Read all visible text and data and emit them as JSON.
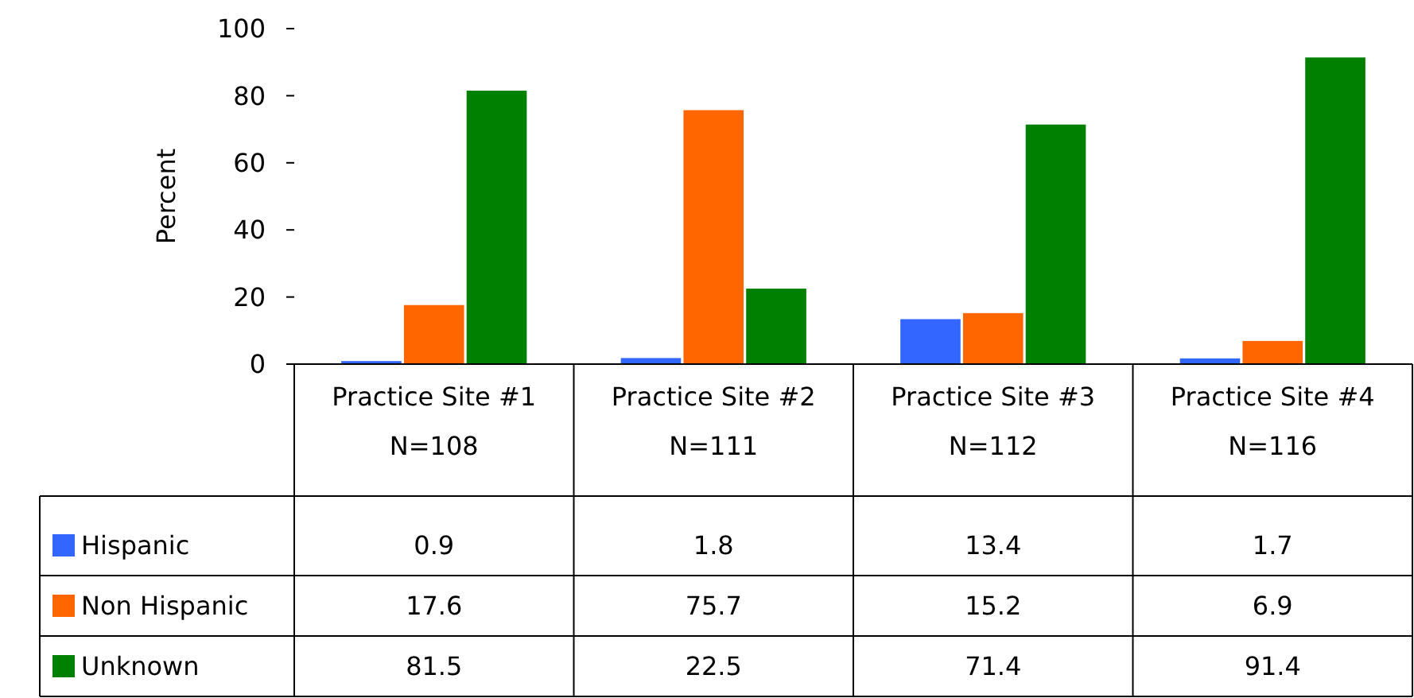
{
  "chart_data": {
    "type": "bar",
    "ylabel": "Percent",
    "categories": [
      "Practice Site #1\nN=108",
      "Practice Site #2\nN=111",
      "Practice Site #3\nN=112",
      "Practice Site #4\nN=116"
    ],
    "series": [
      {
        "name": "Hispanic",
        "color": "#3366ff",
        "values": [
          0.9,
          1.8,
          13.4,
          1.7
        ]
      },
      {
        "name": "Non Hispanic",
        "color": "#ff6600",
        "values": [
          17.6,
          75.7,
          15.2,
          6.9
        ]
      },
      {
        "name": "Unknown",
        "color": "#008000",
        "values": [
          81.5,
          22.5,
          71.4,
          91.4
        ]
      }
    ],
    "ylim": [
      0,
      100
    ],
    "yticks": [
      0,
      20,
      40,
      60,
      80,
      100
    ],
    "grid": false,
    "legend": "bottom left",
    "data_labels": true
  }
}
